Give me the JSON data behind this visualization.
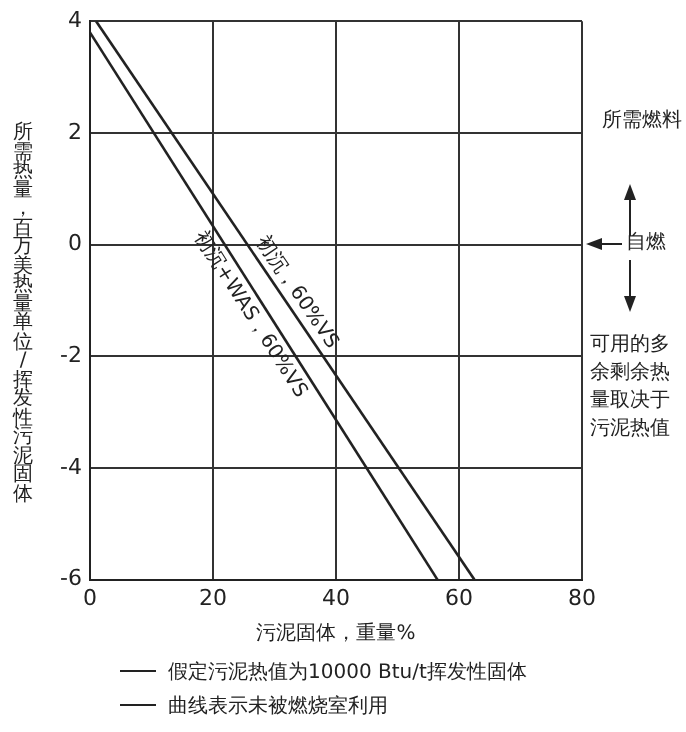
{
  "chart_data": {
    "type": "line",
    "xlabel": "污泥固体，重量%",
    "ylabel": "所需热量，百万美热量单位/挥发性污泥固体",
    "series": [
      {
        "color": "#222222",
        "x": [
          1,
          62.5
        ],
        "values": [
          4,
          -6
        ]
      },
      {
        "color": "#222222",
        "x": [
          0,
          56.5
        ],
        "values": [
          3.8,
          -6
        ]
      }
    ],
    "xlim": [
      0,
      80
    ],
    "xticks": [
      0,
      20,
      40,
      60,
      80
    ],
    "ylim": [
      -6,
      4
    ],
    "yticks": [
      -6,
      -4,
      -2,
      0,
      2,
      4
    ],
    "grid": true,
    "legend": false,
    "marker": "none",
    "line_style": "solid",
    "annotations": [
      "初沉，60%VS",
      "初沉+WAS，60%VS",
      "所需燃料",
      "自燃",
      "可用的多余剩余热量取决于污泥热值",
      "假定污泥热值为10000 Btu/t挥发性固体",
      "曲线表示未被燃烧室利用"
    ]
  }
}
